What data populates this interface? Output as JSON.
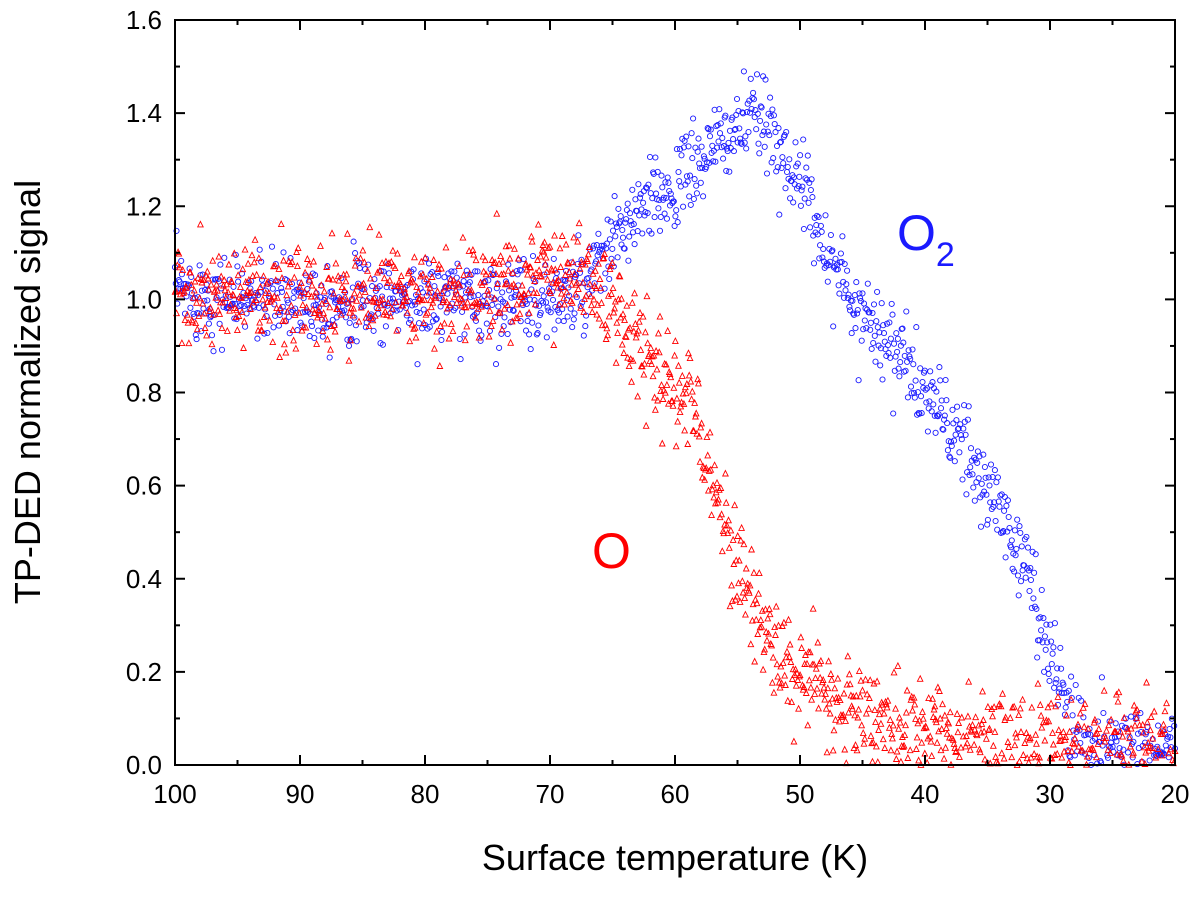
{
  "chart_data": {
    "type": "scatter",
    "title": "",
    "xlabel": "Surface temperature (K)",
    "ylabel": "TP-DED normalized signal",
    "xlim": [
      100,
      20
    ],
    "ylim": [
      0.0,
      1.6
    ],
    "x_reversed": true,
    "x_ticks": [
      100,
      90,
      80,
      70,
      60,
      50,
      40,
      30,
      20
    ],
    "x_tick_labels": [
      "100",
      "90",
      "80",
      "70",
      "60",
      "50",
      "40",
      "30",
      "20"
    ],
    "y_ticks": [
      0.0,
      0.2,
      0.4,
      0.6,
      0.8,
      1.0,
      1.2,
      1.4,
      1.6
    ],
    "y_tick_labels": [
      "0.0",
      "0.2",
      "0.4",
      "0.6",
      "0.8",
      "1.0",
      "1.2",
      "1.4",
      "1.6"
    ],
    "grid": false,
    "legend": "none",
    "series": [
      {
        "name": "O2",
        "label_main": "O",
        "label_sub": "2",
        "marker": "circle",
        "color": "#1a1aff",
        "x": [
          100,
          95,
          90,
          85,
          80,
          75,
          70,
          67,
          65,
          63,
          61,
          59,
          57,
          55,
          53.5,
          52,
          50,
          48,
          46,
          44,
          42,
          40,
          38,
          36,
          34,
          32,
          30,
          29,
          28,
          27,
          25,
          23,
          21,
          20
        ],
        "values": [
          1.02,
          1.0,
          1.0,
          1.0,
          1.0,
          1.0,
          1.0,
          1.02,
          1.12,
          1.18,
          1.22,
          1.27,
          1.32,
          1.37,
          1.39,
          1.35,
          1.25,
          1.12,
          1.0,
          0.95,
          0.88,
          0.8,
          0.73,
          0.63,
          0.55,
          0.43,
          0.25,
          0.15,
          0.08,
          0.05,
          0.04,
          0.04,
          0.04,
          0.04
        ]
      },
      {
        "name": "O",
        "label_main": "O",
        "label_sub": "",
        "marker": "triangle",
        "color": "#ff0000",
        "x": [
          100,
          95,
          90,
          85,
          80,
          75,
          70,
          67,
          65,
          63,
          61,
          60,
          59,
          58,
          57,
          56,
          55,
          54,
          53,
          52,
          51,
          50,
          48,
          46,
          44,
          42,
          40,
          38,
          35,
          32,
          30,
          28,
          25,
          22,
          20
        ],
        "values": [
          1.0,
          1.0,
          1.0,
          1.02,
          1.0,
          1.02,
          1.06,
          1.05,
          0.98,
          0.9,
          0.85,
          0.82,
          0.78,
          0.72,
          0.62,
          0.52,
          0.44,
          0.36,
          0.3,
          0.26,
          0.22,
          0.18,
          0.15,
          0.12,
          0.1,
          0.08,
          0.07,
          0.06,
          0.05,
          0.05,
          0.04,
          0.04,
          0.04,
          0.03,
          0.03
        ]
      }
    ]
  }
}
